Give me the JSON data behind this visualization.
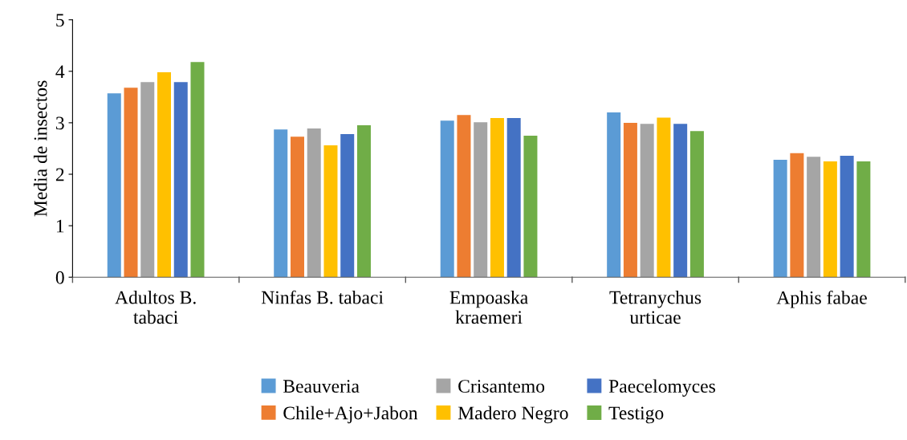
{
  "chart_data": {
    "type": "bar",
    "ylabel": "Media de insectos",
    "categories": [
      "Adultos B. tabaci",
      "Ninfas B. tabaci",
      "Empoaska kraemeri",
      "Tetranychus urticae",
      "Aphis fabae"
    ],
    "series": [
      {
        "name": "Beauveria",
        "color": "#5b9bd5",
        "values": [
          3.57,
          2.87,
          3.04,
          3.2,
          2.28
        ]
      },
      {
        "name": "Chile+Ajo+Jabon",
        "color": "#ed7d31",
        "values": [
          3.68,
          2.73,
          3.15,
          3.0,
          2.41
        ]
      },
      {
        "name": "Crisantemo",
        "color": "#a5a5a5",
        "values": [
          3.79,
          2.89,
          3.01,
          2.98,
          2.34
        ]
      },
      {
        "name": "Madero Negro",
        "color": "#ffc000",
        "values": [
          3.98,
          2.56,
          3.09,
          3.1,
          2.25
        ]
      },
      {
        "name": "Paecelomyces",
        "color": "#4472c4",
        "values": [
          3.79,
          2.78,
          3.09,
          2.98,
          2.36
        ]
      },
      {
        "name": "Testigo",
        "color": "#70ad47",
        "values": [
          4.18,
          2.95,
          2.75,
          2.84,
          2.25
        ]
      }
    ],
    "ylim": [
      0,
      5
    ],
    "yticks": [
      0,
      1,
      2,
      3,
      4,
      5
    ],
    "grid": false,
    "legend": "bottom"
  }
}
